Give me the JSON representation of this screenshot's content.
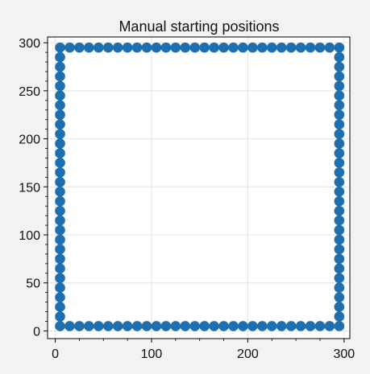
{
  "chart_data": {
    "type": "scatter",
    "title": "Manual starting positions",
    "xlabel": "",
    "ylabel": "",
    "xlim": [
      -8,
      306
    ],
    "ylim": [
      -8,
      306
    ],
    "x_ticks": [
      0,
      100,
      200,
      300
    ],
    "y_ticks": [
      0,
      50,
      100,
      150,
      200,
      250,
      300
    ],
    "x_tick_labels": [
      "0",
      "100",
      "200",
      "300"
    ],
    "y_tick_labels": [
      "0",
      "50",
      "100",
      "150",
      "200",
      "250",
      "300"
    ],
    "grid": true,
    "marker_color": "#1f6fae",
    "series": [
      {
        "x": [
          5,
          15,
          25,
          35,
          45,
          55,
          65,
          75,
          85,
          95,
          105,
          115,
          125,
          135,
          145,
          155,
          165,
          175,
          185,
          195,
          205,
          215,
          225,
          235,
          245,
          255,
          265,
          275,
          285,
          295,
          295,
          295,
          295,
          295,
          295,
          295,
          295,
          295,
          295,
          295,
          295,
          295,
          295,
          295,
          295,
          295,
          295,
          295,
          295,
          295,
          295,
          295,
          295,
          295,
          295,
          295,
          295,
          295,
          295,
          285,
          275,
          265,
          255,
          245,
          235,
          225,
          215,
          205,
          195,
          185,
          175,
          165,
          155,
          145,
          135,
          125,
          115,
          105,
          95,
          85,
          75,
          65,
          55,
          45,
          35,
          25,
          15,
          5,
          5,
          5,
          5,
          5,
          5,
          5,
          5,
          5,
          5,
          5,
          5,
          5,
          5,
          5,
          5,
          5,
          5,
          5,
          5,
          5,
          5,
          5,
          5,
          5,
          5,
          5,
          5,
          5
        ],
        "y": [
          5,
          5,
          5,
          5,
          5,
          5,
          5,
          5,
          5,
          5,
          5,
          5,
          5,
          5,
          5,
          5,
          5,
          5,
          5,
          5,
          5,
          5,
          5,
          5,
          5,
          5,
          5,
          5,
          5,
          5,
          15,
          25,
          35,
          45,
          55,
          65,
          75,
          85,
          95,
          105,
          115,
          125,
          135,
          145,
          155,
          165,
          175,
          185,
          195,
          205,
          215,
          225,
          235,
          245,
          255,
          265,
          275,
          285,
          295,
          295,
          295,
          295,
          295,
          295,
          295,
          295,
          295,
          295,
          295,
          295,
          295,
          295,
          295,
          295,
          295,
          295,
          295,
          295,
          295,
          295,
          295,
          295,
          295,
          295,
          295,
          295,
          295,
          295,
          285,
          275,
          265,
          255,
          245,
          235,
          225,
          215,
          205,
          195,
          185,
          175,
          165,
          155,
          145,
          135,
          125,
          115,
          105,
          95,
          85,
          75,
          65,
          55,
          45,
          35,
          25,
          15
        ]
      }
    ]
  }
}
